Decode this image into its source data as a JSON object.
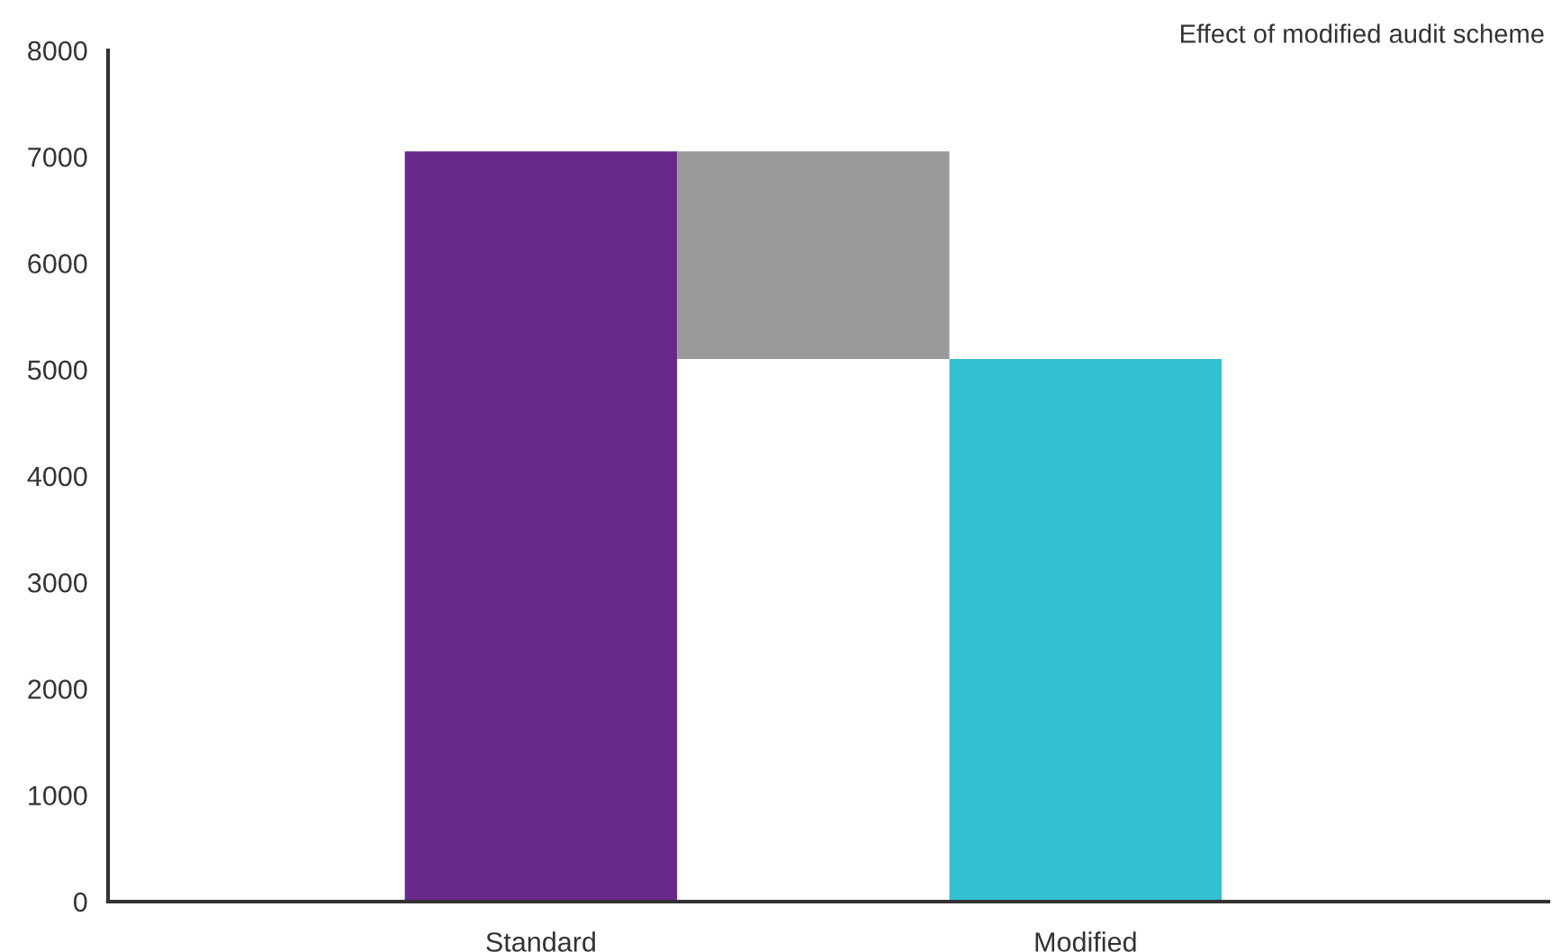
{
  "chart_data": {
    "type": "bar",
    "title": "Effect of modified audit scheme",
    "categories": [
      "Standard",
      null,
      "Modified"
    ],
    "values": [
      7050,
      1950,
      5100
    ],
    "base": [
      0,
      5100,
      0
    ],
    "colors": [
      "#682a8a",
      "#98999b",
      "#33c0d3"
    ],
    "ylim": [
      0,
      8000
    ],
    "yticks": [
      0,
      1000,
      2000,
      3000,
      4000,
      5000,
      6000,
      7000,
      8000
    ],
    "grid": false,
    "legend": false
  }
}
